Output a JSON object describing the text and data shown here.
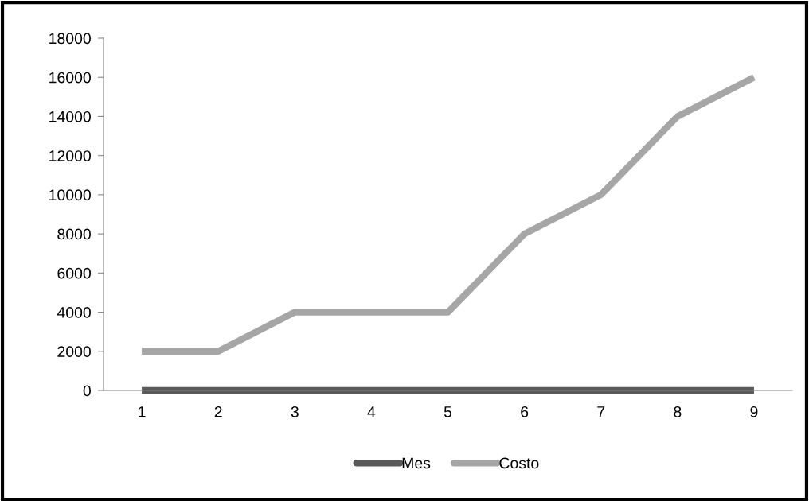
{
  "chart_data": {
    "type": "line",
    "categories": [
      "1",
      "2",
      "3",
      "4",
      "5",
      "6",
      "7",
      "8",
      "9"
    ],
    "series": [
      {
        "name": "Mes",
        "color": "#595959",
        "values": [
          0,
          0,
          0,
          0,
          0,
          0,
          0,
          0,
          0
        ]
      },
      {
        "name": "Costo",
        "color": "#a6a6a6",
        "values": [
          2000,
          2000,
          4000,
          4000,
          4000,
          8000,
          10000,
          14000,
          16000
        ]
      }
    ],
    "ylim": [
      0,
      18000
    ],
    "yticks": [
      0,
      2000,
      4000,
      6000,
      8000,
      10000,
      12000,
      14000,
      16000,
      18000
    ],
    "grid": false,
    "legend": "bottom",
    "marker": "none",
    "line_style": "solid"
  }
}
